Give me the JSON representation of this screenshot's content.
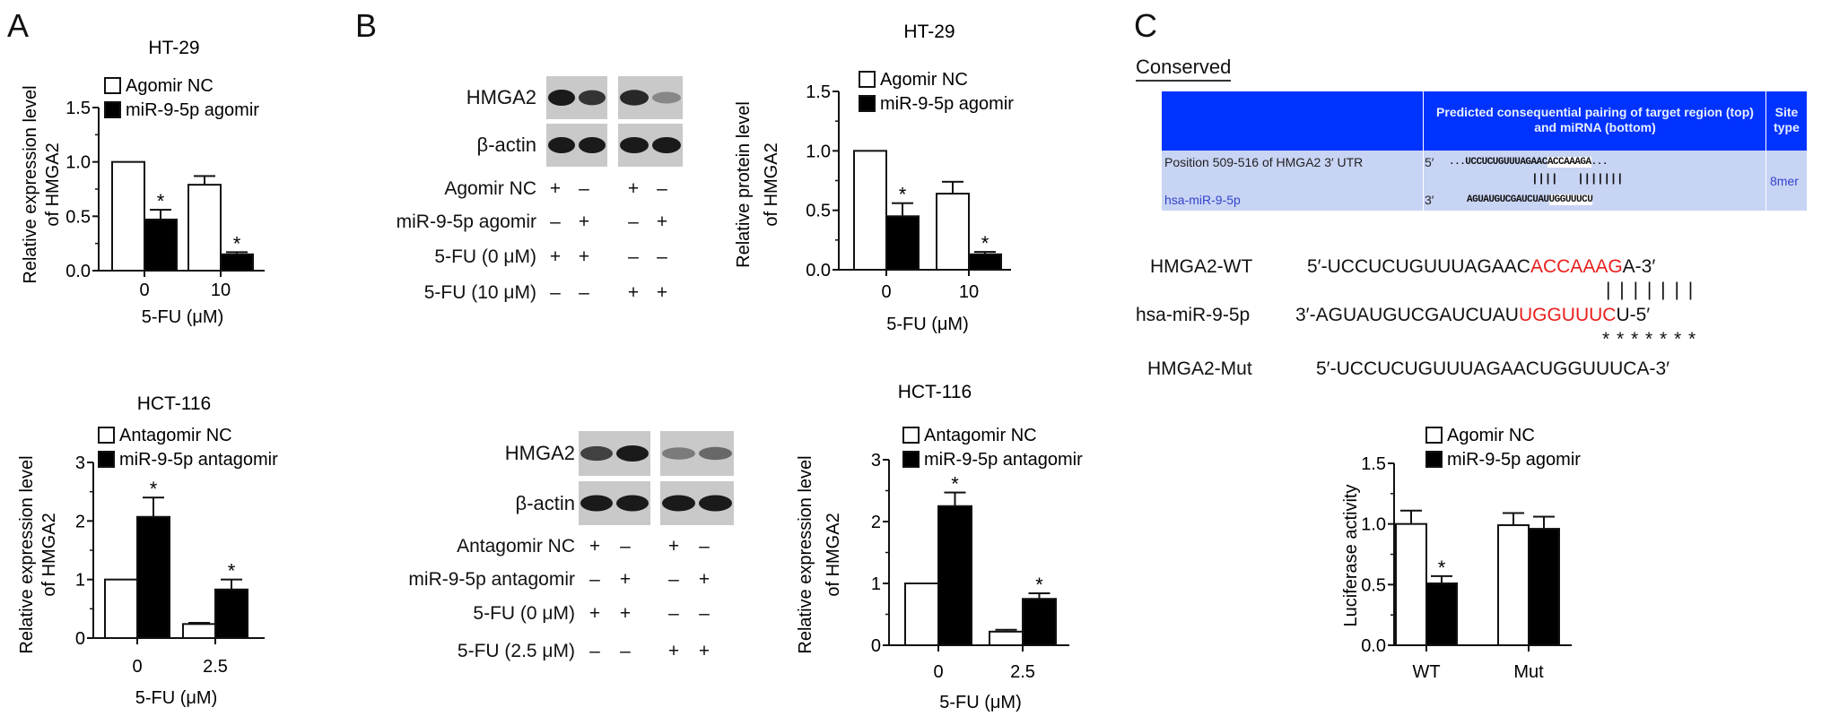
{
  "panels": {
    "A": "A",
    "B": "B",
    "C": "C"
  },
  "colors": {
    "control_bar": "#ffffff",
    "treated_bar": "#000000",
    "table_header": "#0033ff",
    "table_body": "#c8d4f4",
    "seed_highlight": "#e8201e",
    "mirna_name": "#3344cc"
  },
  "chart_data": [
    {
      "type": "bar",
      "panel": "A",
      "title": "HT-29",
      "ylabel": [
        "Relative expression level",
        "of HMGA2"
      ],
      "xlabel": "5-FU (μM)",
      "categories": [
        "0",
        "10"
      ],
      "ylim": [
        0,
        1.5
      ],
      "yticks": [
        "0.0",
        "0.5",
        "1.0",
        "1.5"
      ],
      "ytick_values": [
        0,
        0.5,
        1.0,
        1.5
      ],
      "legend": "top-left",
      "series": [
        {
          "name": "Agomir NC",
          "values": [
            1.0,
            0.79
          ],
          "errors": [
            0,
            0.08
          ],
          "significant": [
            false,
            false
          ]
        },
        {
          "name": "miR-9-5p agomir",
          "values": [
            0.47,
            0.15
          ],
          "errors": [
            0.09,
            0.02
          ],
          "significant": [
            true,
            true
          ]
        }
      ]
    },
    {
      "type": "bar",
      "panel": "A",
      "title": "HCT-116",
      "ylabel": [
        "Relative expression level",
        "of HMGA2"
      ],
      "xlabel": "5-FU (μM)",
      "categories": [
        "0",
        "2.5"
      ],
      "ylim": [
        0,
        3
      ],
      "yticks": [
        "0",
        "1",
        "2",
        "3"
      ],
      "ytick_values": [
        0,
        1,
        2,
        3
      ],
      "legend": "top-left",
      "series": [
        {
          "name": "Antagomir NC",
          "values": [
            1.0,
            0.24
          ],
          "errors": [
            0,
            0.02
          ],
          "significant": [
            false,
            false
          ]
        },
        {
          "name": "miR-9-5p antagomir",
          "values": [
            2.07,
            0.83
          ],
          "errors": [
            0.33,
            0.17
          ],
          "significant": [
            true,
            true
          ]
        }
      ]
    },
    {
      "type": "bar",
      "panel": "B",
      "title": "HT-29",
      "ylabel": [
        "Relative protein level",
        "of HMGA2"
      ],
      "xlabel": "5-FU (μM)",
      "categories": [
        "0",
        "10"
      ],
      "ylim": [
        0,
        1.5
      ],
      "yticks": [
        "0.0",
        "0.5",
        "1.0",
        "1.5"
      ],
      "ytick_values": [
        0,
        0.5,
        1.0,
        1.5
      ],
      "legend": "top-left",
      "series": [
        {
          "name": "Agomir NC",
          "values": [
            1.0,
            0.64
          ],
          "errors": [
            0,
            0.1
          ],
          "significant": [
            false,
            false
          ]
        },
        {
          "name": "miR-9-5p agomir",
          "values": [
            0.45,
            0.13
          ],
          "errors": [
            0.11,
            0.02
          ],
          "significant": [
            true,
            true
          ]
        }
      ]
    },
    {
      "type": "bar",
      "panel": "B",
      "title": "HCT-116",
      "ylabel": [
        "Relative expression level",
        "of HMGA2"
      ],
      "xlabel": "5-FU (μM)",
      "categories": [
        "0",
        "2.5"
      ],
      "ylim": [
        0,
        3
      ],
      "yticks": [
        "0",
        "1",
        "2",
        "3"
      ],
      "ytick_values": [
        0,
        1,
        2,
        3
      ],
      "legend": "top-left",
      "series": [
        {
          "name": "Antagomir NC",
          "values": [
            1.0,
            0.22
          ],
          "errors": [
            0,
            0.03
          ],
          "significant": [
            false,
            false
          ]
        },
        {
          "name": "miR-9-5p antagomir",
          "values": [
            2.25,
            0.75
          ],
          "errors": [
            0.22,
            0.09
          ],
          "significant": [
            true,
            true
          ]
        }
      ]
    },
    {
      "type": "bar",
      "panel": "C",
      "title": "",
      "ylabel": [
        "Luciferase activity"
      ],
      "xlabel": "",
      "categories": [
        "WT",
        "Mut"
      ],
      "ylim": [
        0,
        1.5
      ],
      "yticks": [
        "0.0",
        "0.5",
        "1.0",
        "1.5"
      ],
      "ytick_values": [
        0,
        0.5,
        1.0,
        1.5
      ],
      "legend": "top-left",
      "series": [
        {
          "name": "Agomir NC",
          "values": [
            1.0,
            0.99
          ],
          "errors": [
            0.11,
            0.1
          ],
          "significant": [
            false,
            false
          ]
        },
        {
          "name": "miR-9-5p agomir",
          "values": [
            0.51,
            0.96
          ],
          "errors": [
            0.06,
            0.1
          ],
          "significant": [
            true,
            false
          ]
        }
      ]
    }
  ],
  "blots": [
    {
      "bands": [
        "HMGA2",
        "β-actin"
      ],
      "rows": [
        {
          "label": "Agomir NC",
          "signs": [
            "+",
            "–",
            "+",
            "–"
          ]
        },
        {
          "label": "miR-9-5p agomir",
          "signs": [
            "–",
            "+",
            "–",
            "+"
          ]
        },
        {
          "label": "5-FU (0 μM)",
          "signs": [
            "+",
            "+",
            "–",
            "–"
          ]
        },
        {
          "label": "5-FU (10 μM)",
          "signs": [
            "–",
            "–",
            "+",
            "+"
          ]
        }
      ]
    },
    {
      "bands": [
        "HMGA2",
        "β-actin"
      ],
      "rows": [
        {
          "label": "Antagomir NC",
          "signs": [
            "+",
            "–",
            "+",
            "–"
          ]
        },
        {
          "label": "miR-9-5p antagomir",
          "signs": [
            "–",
            "+",
            "–",
            "+"
          ]
        },
        {
          "label": "5-FU (0 μM)",
          "signs": [
            "+",
            "+",
            "–",
            "–"
          ]
        },
        {
          "label": "5-FU (2.5 μM)",
          "signs": [
            "–",
            "–",
            "+",
            "+"
          ]
        }
      ]
    }
  ],
  "target_table": {
    "section_label": "Conserved",
    "header": {
      "pairing": "Predicted consequential pairing of target region (top) and miRNA (bottom)",
      "site_type": "Site type"
    },
    "target_row": {
      "label": "Position 509-516 of HMGA2 3′ UTR",
      "end": "5′",
      "seq_pre": "...UCCUCUGUUUAGAAC",
      "seq_seed": "ACCAAAGA",
      "seq_post": "..."
    },
    "pairing_lines": "||||   |||||||",
    "mirna_row": {
      "label": "hsa-miR-9-5p",
      "end": "3′",
      "seq_pre": "AGUAUGUCGAUCUAU",
      "seq_seed": "UGGUUUCU"
    },
    "site_type": "8mer"
  },
  "sequences": {
    "wt": {
      "label": "HMGA2-WT",
      "pre": "5′-UCCUCUGUUUAGAAC",
      "seed": "ACCAAAG",
      "post": "A-3′"
    },
    "pairs": "| | | | | | |",
    "mirna": {
      "label": "hsa-miR-9-5p",
      "pre": "3′-AGUAUGUCGAUCUAU",
      "seed": "UGGUUUC",
      "post": "U-5′"
    },
    "mutations": "* * * * * * *",
    "mut": {
      "label": "HMGA2-Mut",
      "seq": "5′-UCCUCUGUUUAGAACUGGUUUCA-3′"
    }
  }
}
